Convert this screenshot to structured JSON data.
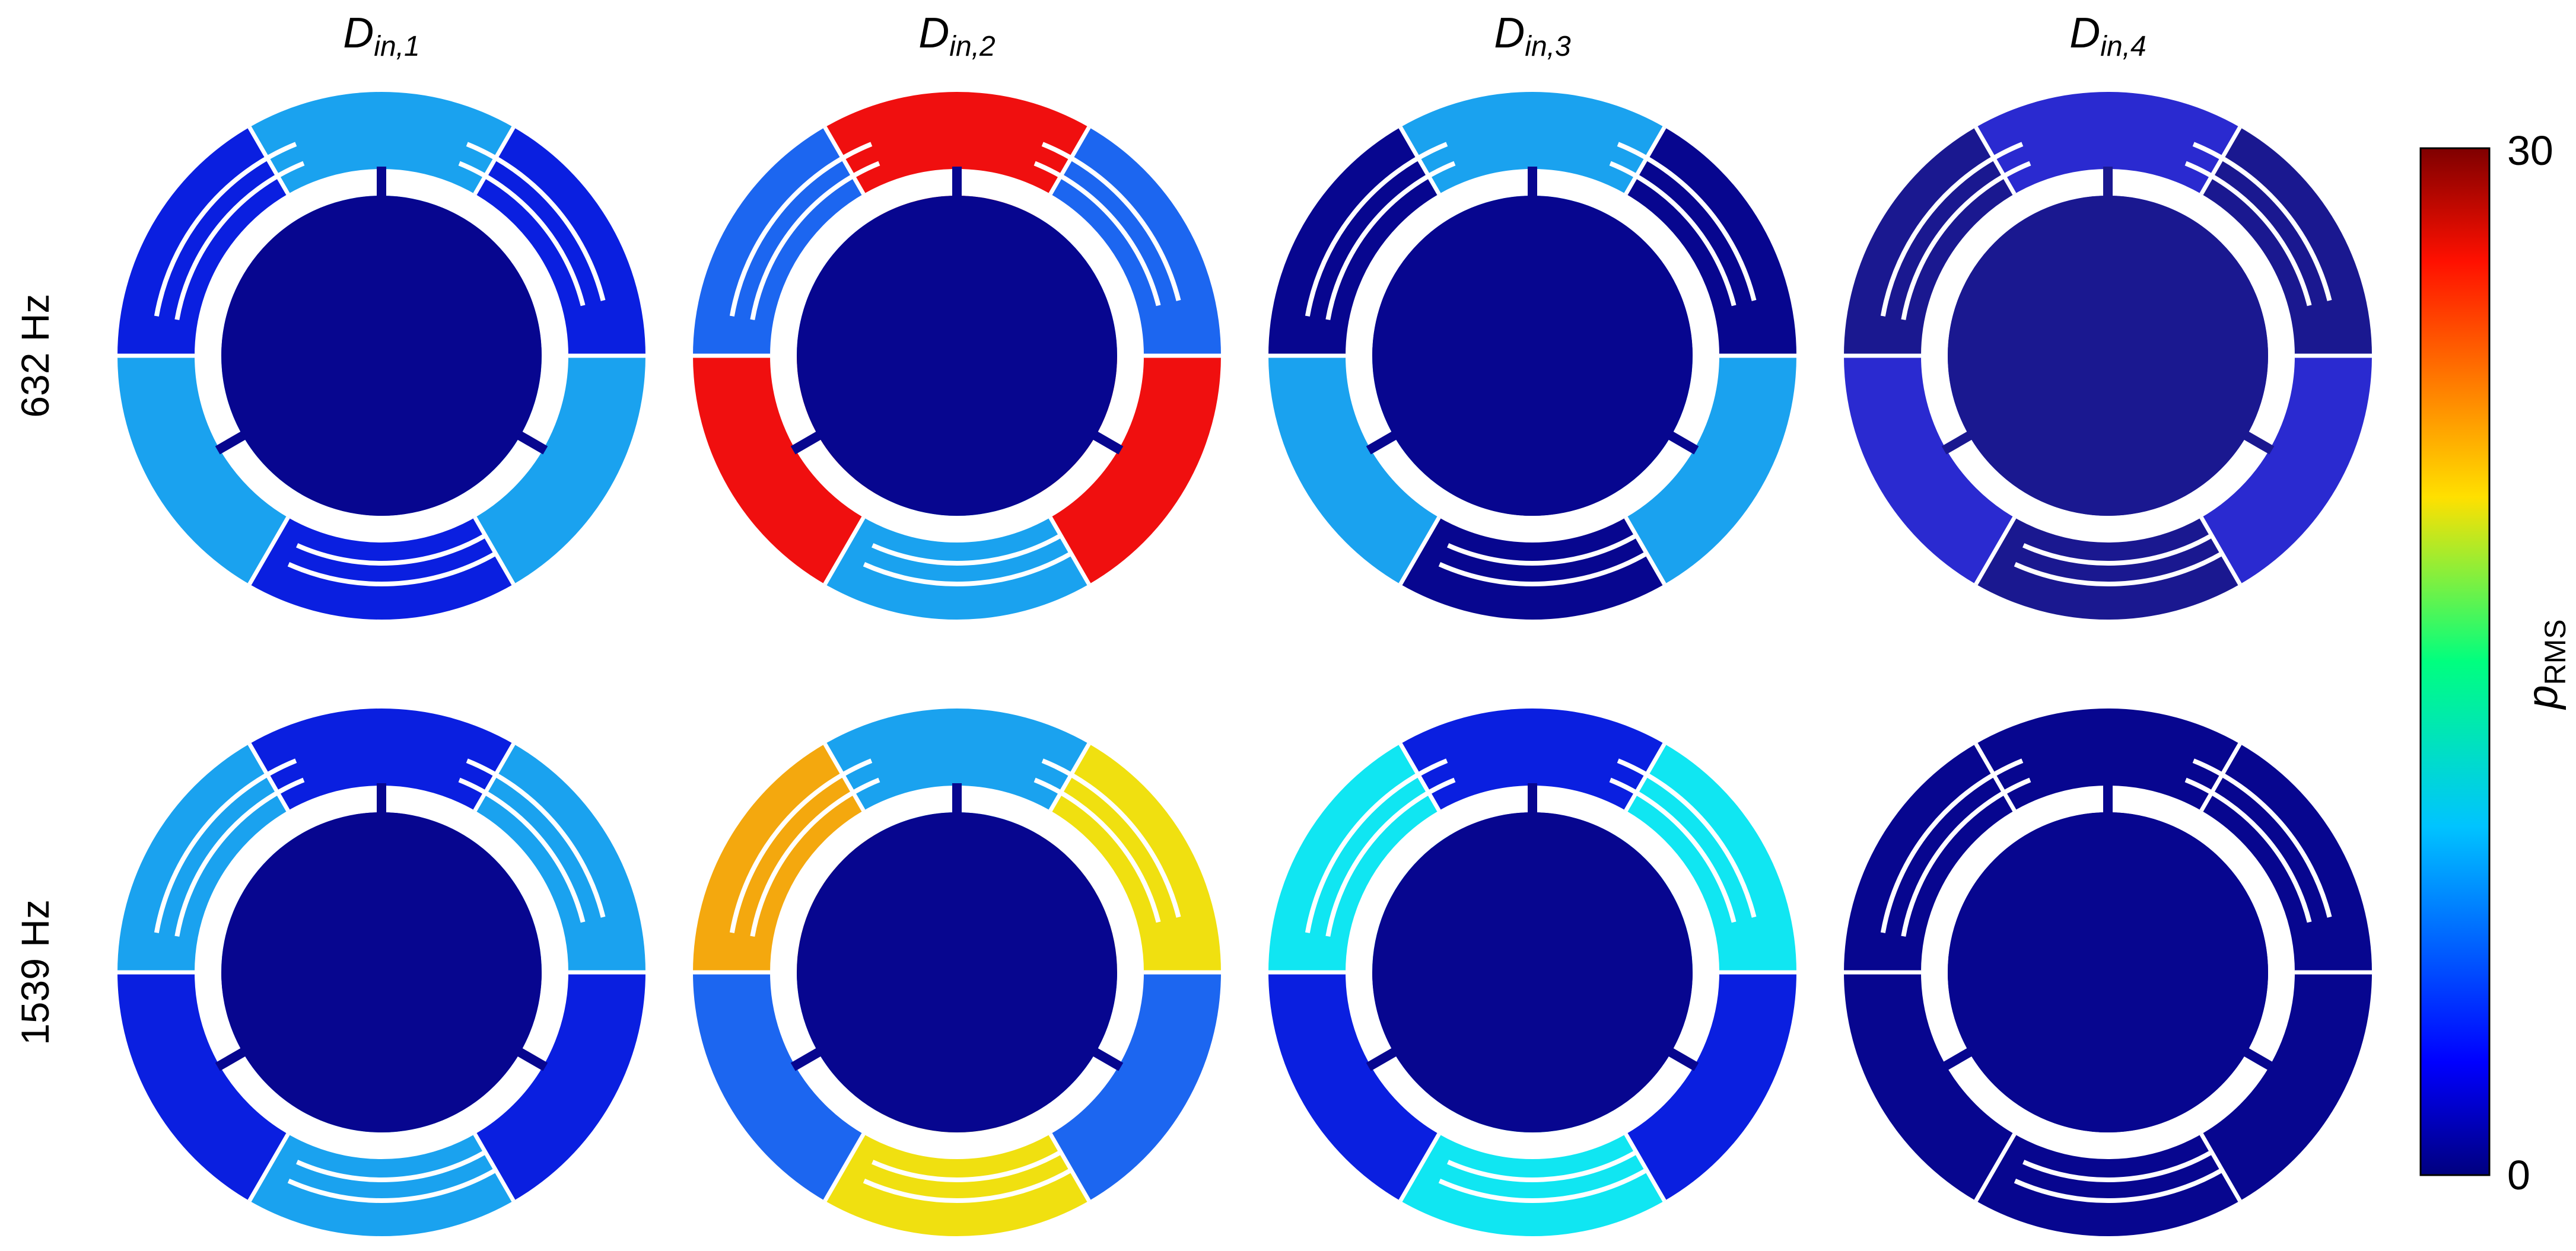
{
  "columns": [
    {
      "base": "D",
      "sub": "in,1"
    },
    {
      "base": "D",
      "sub": "in,2"
    },
    {
      "base": "D",
      "sub": "in,3"
    },
    {
      "base": "D",
      "sub": "in,4"
    }
  ],
  "rows": [
    "632 Hz",
    "1539 Hz"
  ],
  "colorbar": {
    "max_label": "30",
    "min_label": "0",
    "label_base": "p",
    "label_sub": "RMS",
    "range": [
      0,
      30
    ],
    "colormap": "jet"
  },
  "colors": {
    "navy": "#07068f",
    "blue": "#0a1fe0",
    "midblue": "#1c66f0",
    "lightblue": "#1aa2ef",
    "cyan": "#10e6f2",
    "red": "#f00f0f",
    "yellow": "#f0e010",
    "orange": "#f4a80e",
    "dim": "#1a1890",
    "indigo": "#2a2ad0"
  },
  "panels": [
    {
      "row": 0,
      "col": 0,
      "inner": "navy",
      "sectors": [
        "blue",
        "lightblue",
        "blue",
        "lightblue",
        "blue",
        "lightblue"
      ]
    },
    {
      "row": 0,
      "col": 1,
      "inner": "navy",
      "sectors": [
        "midblue",
        "red",
        "midblue",
        "red",
        "lightblue",
        "red"
      ]
    },
    {
      "row": 0,
      "col": 2,
      "inner": "navy",
      "sectors": [
        "navy",
        "lightblue",
        "navy",
        "lightblue",
        "navy",
        "lightblue"
      ]
    },
    {
      "row": 0,
      "col": 3,
      "inner": "dim",
      "sectors": [
        "dim",
        "indigo",
        "dim",
        "indigo",
        "dim",
        "indigo"
      ]
    },
    {
      "row": 1,
      "col": 0,
      "inner": "navy",
      "sectors": [
        "lightblue",
        "blue",
        "lightblue",
        "blue",
        "lightblue",
        "blue"
      ]
    },
    {
      "row": 1,
      "col": 1,
      "inner": "navy",
      "sectors": [
        "yellow",
        "lightblue",
        "orange",
        "midblue",
        "yellow",
        "midblue"
      ]
    },
    {
      "row": 1,
      "col": 2,
      "inner": "navy",
      "sectors": [
        "cyan",
        "blue",
        "cyan",
        "blue",
        "cyan",
        "blue"
      ]
    },
    {
      "row": 1,
      "col": 3,
      "inner": "navy",
      "sectors": [
        "navy",
        "navy",
        "navy",
        "navy",
        "navy",
        "navy"
      ]
    }
  ]
}
